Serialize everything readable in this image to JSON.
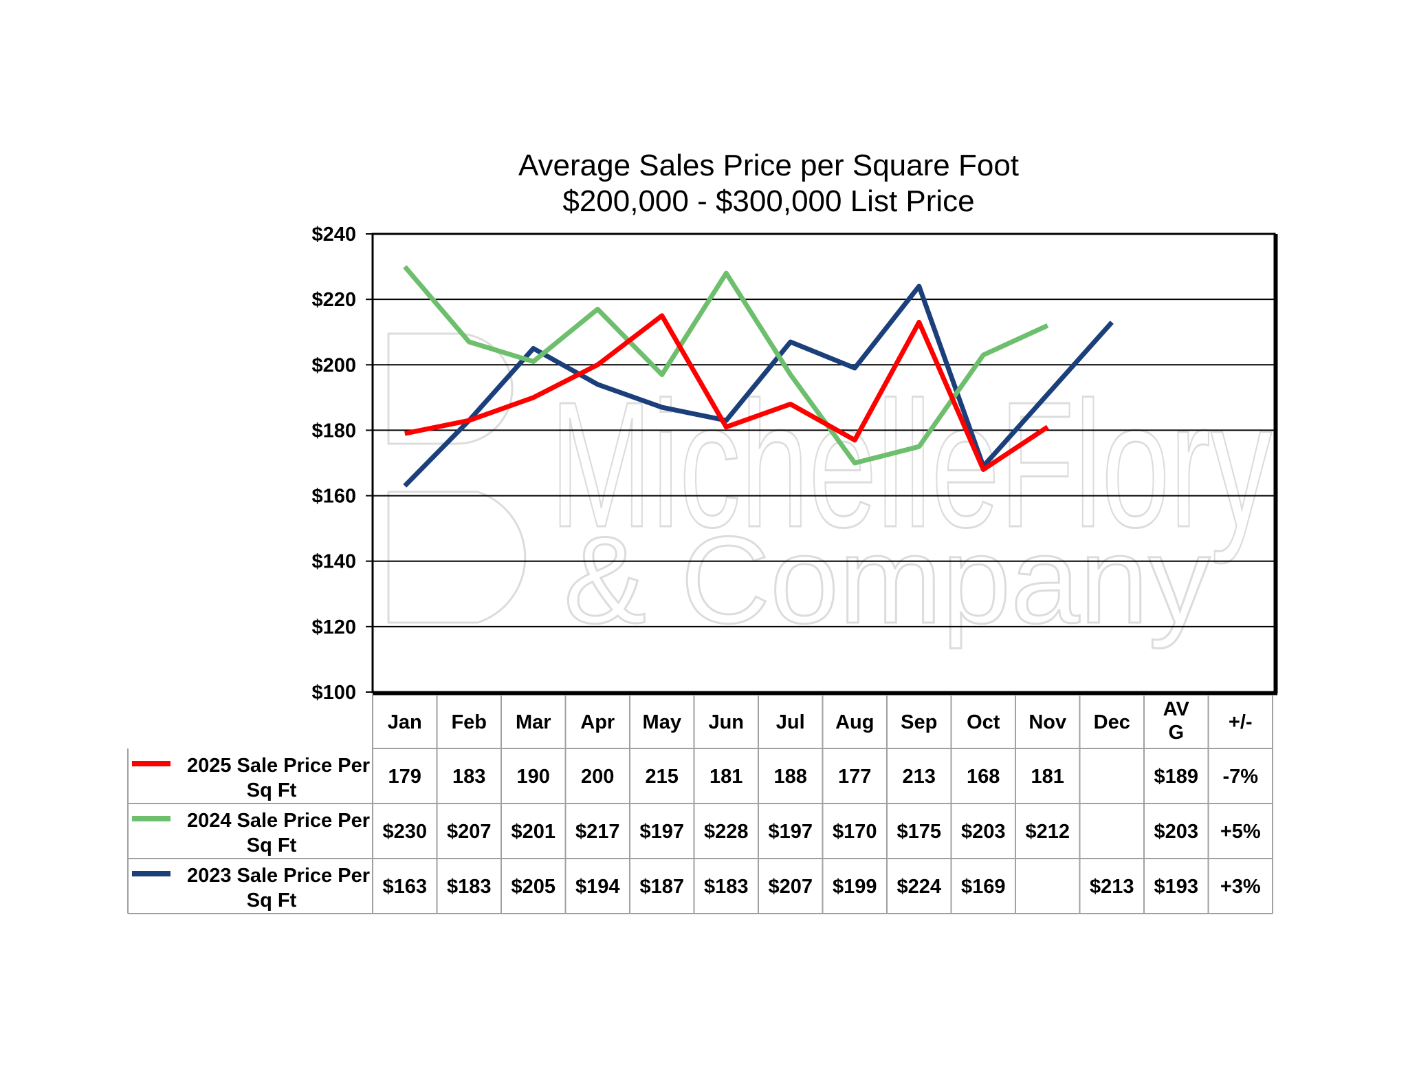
{
  "watermark": {
    "line1": "MichelleFlory",
    "line2": "& Company"
  },
  "chart_data": {
    "type": "line",
    "title": "Average Sales Price per Square Foot",
    "subtitle": "$200,000 - $300,000 List Price",
    "categories": [
      "Jan",
      "Feb",
      "Mar",
      "Apr",
      "May",
      "Jun",
      "Jul",
      "Aug",
      "Sep",
      "Oct",
      "Nov",
      "Dec"
    ],
    "ylim": [
      100,
      240
    ],
    "yticks": [
      100,
      120,
      140,
      160,
      180,
      200,
      220,
      240
    ],
    "ytick_labels": [
      "$100",
      "$120",
      "$140",
      "$160",
      "$180",
      "$200",
      "$220",
      "$240"
    ],
    "grid": true,
    "legend": "data-table-left",
    "extra_columns": [
      "AV\nG",
      "+/-"
    ],
    "series": [
      {
        "name": "2025 Sale Price Per Sq Ft",
        "color": "#ff0000",
        "values": [
          179,
          183,
          190,
          200,
          215,
          181,
          188,
          177,
          213,
          168,
          181,
          null
        ],
        "labels": [
          "179",
          "183",
          "190",
          "200",
          "215",
          "181",
          "188",
          "177",
          "213",
          "168",
          "181",
          ""
        ],
        "avg": "$189",
        "change": "-7%"
      },
      {
        "name": "2024 Sale Price Per Sq Ft",
        "color": "#6dbf6d",
        "values": [
          230,
          207,
          201,
          217,
          197,
          228,
          197,
          170,
          175,
          203,
          212,
          null
        ],
        "labels": [
          "$230",
          "$207",
          "$201",
          "$217",
          "$197",
          "$228",
          "$197",
          "$170",
          "$175",
          "$203",
          "$212",
          ""
        ],
        "avg": "$203",
        "change": "+5%"
      },
      {
        "name": "2023 Sale Price Per Sq Ft",
        "color": "#1a3f7a",
        "values": [
          163,
          183,
          205,
          194,
          187,
          183,
          207,
          199,
          224,
          169,
          null,
          213
        ],
        "labels": [
          "$163",
          "$183",
          "$205",
          "$194",
          "$187",
          "$183",
          "$207",
          "$199",
          "$224",
          "$169",
          "",
          "$213"
        ],
        "avg": "$193",
        "change": "+3%"
      }
    ]
  }
}
